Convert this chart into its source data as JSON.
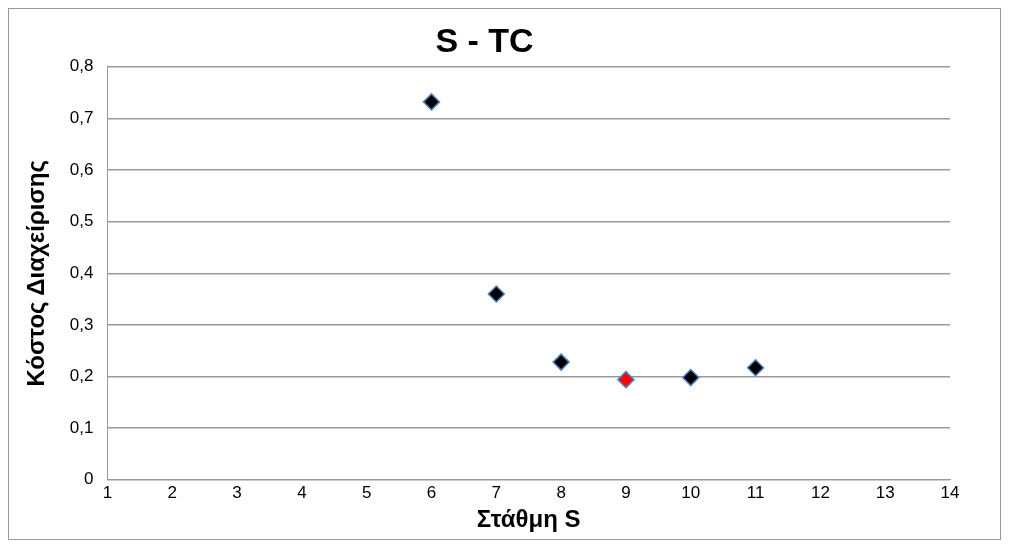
{
  "chart_data": {
    "type": "scatter",
    "title": "S - TC",
    "xlabel": "Στάθμη S",
    "ylabel": "Κόστος Διαχείρισης",
    "x": [
      6,
      7,
      8,
      9,
      10,
      11
    ],
    "series": [
      {
        "values": [
          0.732,
          0.36,
          0.228,
          0.194,
          0.198,
          0.217
        ],
        "colors": [
          "#000000",
          "#000000",
          "#000000",
          "#ff0000",
          "#000000",
          "#000000"
        ]
      }
    ],
    "marker": "diamond",
    "grid": "y",
    "legend": false,
    "xlim": [
      1,
      14
    ],
    "xticks": [
      1,
      2,
      3,
      4,
      5,
      6,
      7,
      8,
      9,
      10,
      11,
      12,
      13,
      14
    ],
    "ylim": [
      0,
      0.8
    ],
    "yticks": [
      {
        "value": 0,
        "label": "0"
      },
      {
        "value": 0.1,
        "label": "0,1"
      },
      {
        "value": 0.2,
        "label": "0,2"
      },
      {
        "value": 0.3,
        "label": "0,3"
      },
      {
        "value": 0.4,
        "label": "0,4"
      },
      {
        "value": 0.5,
        "label": "0,5"
      },
      {
        "value": 0.6,
        "label": "0,6"
      },
      {
        "value": 0.7,
        "label": "0,7"
      },
      {
        "value": 0.8,
        "label": "0,8"
      }
    ]
  }
}
